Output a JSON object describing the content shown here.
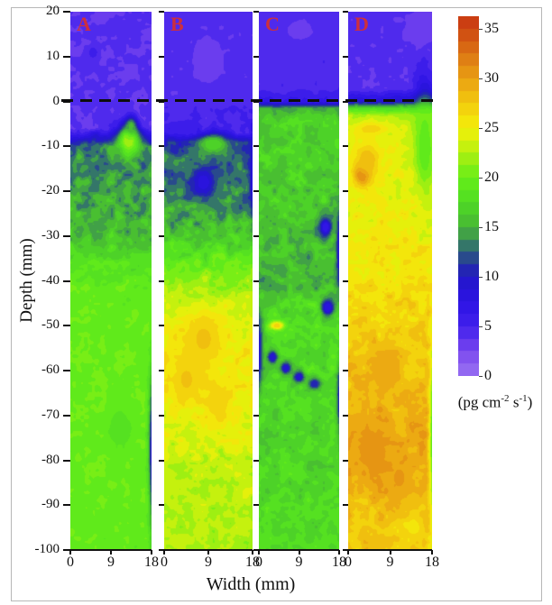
{
  "figure": {
    "ylabel": "Depth (mm)",
    "xlabel": "Width (mm)"
  },
  "chart_data": {
    "type": "heatmap",
    "title": "",
    "xlabel": "Width (mm)",
    "ylabel": "Depth (mm)",
    "x_range": [
      0,
      18
    ],
    "x_ticks": [
      0,
      9,
      18
    ],
    "y_range": [
      -100,
      20
    ],
    "y_ticks": [
      20,
      10,
      0,
      -10,
      -20,
      -30,
      -40,
      -50,
      -60,
      -70,
      -80,
      -90,
      -100
    ],
    "interface_line_depth": 0,
    "grid": false,
    "colorbar": {
      "min": 0,
      "max": 36.25,
      "band_step": 1.25,
      "ticks": [
        35,
        30,
        25,
        20,
        15,
        10,
        5,
        0
      ],
      "unit": {
        "pre": "(pg cm",
        "sup1": "-2",
        "mid": " s",
        "sup2": "-1",
        "post": ")"
      },
      "anchors": [
        [
          0,
          "#9B74F2"
        ],
        [
          1.25,
          "#8A5CF0"
        ],
        [
          2.5,
          "#7A49EF"
        ],
        [
          3.75,
          "#5C32EE"
        ],
        [
          5,
          "#4322EC"
        ],
        [
          6.25,
          "#3519E8"
        ],
        [
          7.5,
          "#2D14E4"
        ],
        [
          8.75,
          "#2714D6"
        ],
        [
          10,
          "#2318C8"
        ],
        [
          11.25,
          "#24339E"
        ],
        [
          12.5,
          "#2E617A"
        ],
        [
          13.75,
          "#3B8C58"
        ],
        [
          15,
          "#47B637"
        ],
        [
          16.25,
          "#4BC92C"
        ],
        [
          17.5,
          "#50DC24"
        ],
        [
          18.75,
          "#5BE61E"
        ],
        [
          20,
          "#66EE19"
        ],
        [
          21.25,
          "#8BEF14"
        ],
        [
          22.5,
          "#B2F010"
        ],
        [
          23.75,
          "#D8F20C"
        ],
        [
          25,
          "#F2EF0B"
        ],
        [
          26.25,
          "#F4DD0C"
        ],
        [
          27.5,
          "#F2C90E"
        ],
        [
          28.75,
          "#EFB511"
        ],
        [
          30,
          "#EAA013"
        ],
        [
          31.25,
          "#E38A14"
        ],
        [
          32.5,
          "#DC7414"
        ],
        [
          33.75,
          "#D55D13"
        ],
        [
          35,
          "#CE4711"
        ],
        [
          36.25,
          "#C93513"
        ]
      ]
    },
    "panels": [
      {
        "label": "A",
        "profile": [
          [
            20,
            3.8
          ],
          [
            1,
            3.8
          ],
          [
            -6,
            4.3
          ],
          [
            -8,
            8.5
          ],
          [
            -10,
            13.5
          ],
          [
            -16,
            14
          ],
          [
            -24,
            14.8
          ],
          [
            -30,
            16
          ],
          [
            -36,
            18.5
          ],
          [
            -42,
            19.5
          ],
          [
            -60,
            19.8
          ],
          [
            -100,
            19.5
          ]
        ],
        "noise_amp": [
          [
            20,
            0.5
          ],
          [
            0,
            0.6
          ],
          [
            -8,
            2.2
          ],
          [
            -12,
            2.7
          ],
          [
            -30,
            2.8
          ],
          [
            -38,
            1.7
          ],
          [
            -45,
            1.1
          ],
          [
            -100,
            1.0
          ]
        ],
        "blobs": [
          [
            13,
            -8.5,
            2.4,
            3.2,
            22
          ],
          [
            13.5,
            -5.5,
            1.3,
            2.0,
            15
          ],
          [
            18.6,
            -78,
            1.0,
            17,
            7.5
          ],
          [
            11,
            -73,
            2.5,
            4,
            17.5
          ],
          [
            5,
            11,
            1.2,
            1.5,
            5.5
          ]
        ]
      },
      {
        "label": "B",
        "profile": [
          [
            20,
            4.2
          ],
          [
            2,
            4.2
          ],
          [
            -2,
            4.8
          ],
          [
            -7,
            5.5
          ],
          [
            -9,
            11
          ],
          [
            -13,
            13
          ],
          [
            -20,
            13.5
          ],
          [
            -27,
            15
          ],
          [
            -33,
            18
          ],
          [
            -40,
            21.5
          ],
          [
            -47,
            24
          ],
          [
            -56,
            25.5
          ],
          [
            -66,
            25.3
          ],
          [
            -74,
            24.3
          ],
          [
            -82,
            22.8
          ],
          [
            -100,
            22.3
          ]
        ],
        "noise_amp": [
          [
            20,
            0.55
          ],
          [
            0,
            0.7
          ],
          [
            -9,
            2.5
          ],
          [
            -28,
            3.0
          ],
          [
            -36,
            2.2
          ],
          [
            -45,
            2.0
          ],
          [
            -70,
            2.2
          ],
          [
            -100,
            1.6
          ]
        ],
        "blobs": [
          [
            9,
            9,
            4,
            6,
            3.4
          ],
          [
            10,
            -9.5,
            3,
            2.2,
            17
          ],
          [
            8,
            -18,
            2.6,
            3.5,
            8.5
          ],
          [
            18.6,
            -16,
            1.0,
            9,
            7
          ],
          [
            8,
            -53,
            4,
            6,
            27.5
          ],
          [
            4.5,
            -62,
            3,
            5,
            27.5
          ],
          [
            11,
            -67,
            3,
            4.5,
            27
          ]
        ]
      },
      {
        "label": "C",
        "profile": [
          [
            20,
            4.5
          ],
          [
            3,
            4.5
          ],
          [
            0,
            6.5
          ],
          [
            -1.5,
            15
          ],
          [
            -4,
            16.8
          ],
          [
            -20,
            16.5
          ],
          [
            -32,
            15.8
          ],
          [
            -40,
            15
          ],
          [
            -46,
            17.3
          ],
          [
            -60,
            17.5
          ],
          [
            -72,
            17
          ],
          [
            -100,
            17.6
          ]
        ],
        "noise_amp": [
          [
            20,
            0.6
          ],
          [
            0,
            0.9
          ],
          [
            -3,
            2.1
          ],
          [
            -30,
            2.6
          ],
          [
            -45,
            2.3
          ],
          [
            -100,
            1.9
          ]
        ],
        "blobs": [
          [
            9,
            16,
            5,
            3.5,
            3.6
          ],
          [
            4,
            -50,
            1.7,
            1.0,
            26.5
          ],
          [
            3,
            -57,
            1.2,
            1.5,
            9
          ],
          [
            6,
            -59.5,
            1.2,
            1.3,
            9
          ],
          [
            9,
            -61.5,
            1.3,
            1.3,
            9
          ],
          [
            12.5,
            -63,
            1.4,
            1.3,
            10
          ],
          [
            -0.5,
            -56,
            1.3,
            9,
            9
          ],
          [
            18.6,
            -33,
            1.0,
            9,
            7
          ],
          [
            18.6,
            -66,
            0.9,
            8,
            8
          ],
          [
            15,
            -28,
            1.5,
            2.2,
            7
          ],
          [
            15.5,
            -46,
            1.4,
            1.8,
            7.5
          ]
        ]
      },
      {
        "label": "D",
        "profile": [
          [
            20,
            4
          ],
          [
            3,
            4
          ],
          [
            0,
            9
          ],
          [
            -1.5,
            18
          ],
          [
            -3,
            22
          ],
          [
            -6,
            23.8
          ],
          [
            -15,
            24.4
          ],
          [
            -25,
            25
          ],
          [
            -35,
            25.4
          ],
          [
            -45,
            26.5
          ],
          [
            -55,
            27.5
          ],
          [
            -65,
            28.6
          ],
          [
            -75,
            29.6
          ],
          [
            -85,
            29
          ],
          [
            -95,
            27.6
          ],
          [
            -100,
            27.2
          ]
        ],
        "noise_amp": [
          [
            20,
            0.5
          ],
          [
            0,
            0.9
          ],
          [
            -3,
            1.6
          ],
          [
            -20,
            2.0
          ],
          [
            -45,
            2.2
          ],
          [
            -100,
            2.1
          ]
        ],
        "blobs": [
          [
            16,
            17,
            4,
            4,
            3.2
          ],
          [
            5,
            -6,
            4,
            1.6,
            26.5
          ],
          [
            3,
            -16,
            1.7,
            2.4,
            33
          ],
          [
            4,
            -13,
            3,
            4,
            28
          ],
          [
            16.5,
            -10,
            2.4,
            11,
            19.5
          ],
          [
            18.6,
            -75,
            0.9,
            20,
            16
          ],
          [
            5,
            -78,
            3.5,
            6,
            30.5
          ],
          [
            11,
            -84,
            3,
            5,
            30
          ],
          [
            8,
            -60,
            3,
            5,
            29.5
          ],
          [
            14,
            -95,
            2.6,
            3,
            26
          ]
        ]
      }
    ]
  }
}
